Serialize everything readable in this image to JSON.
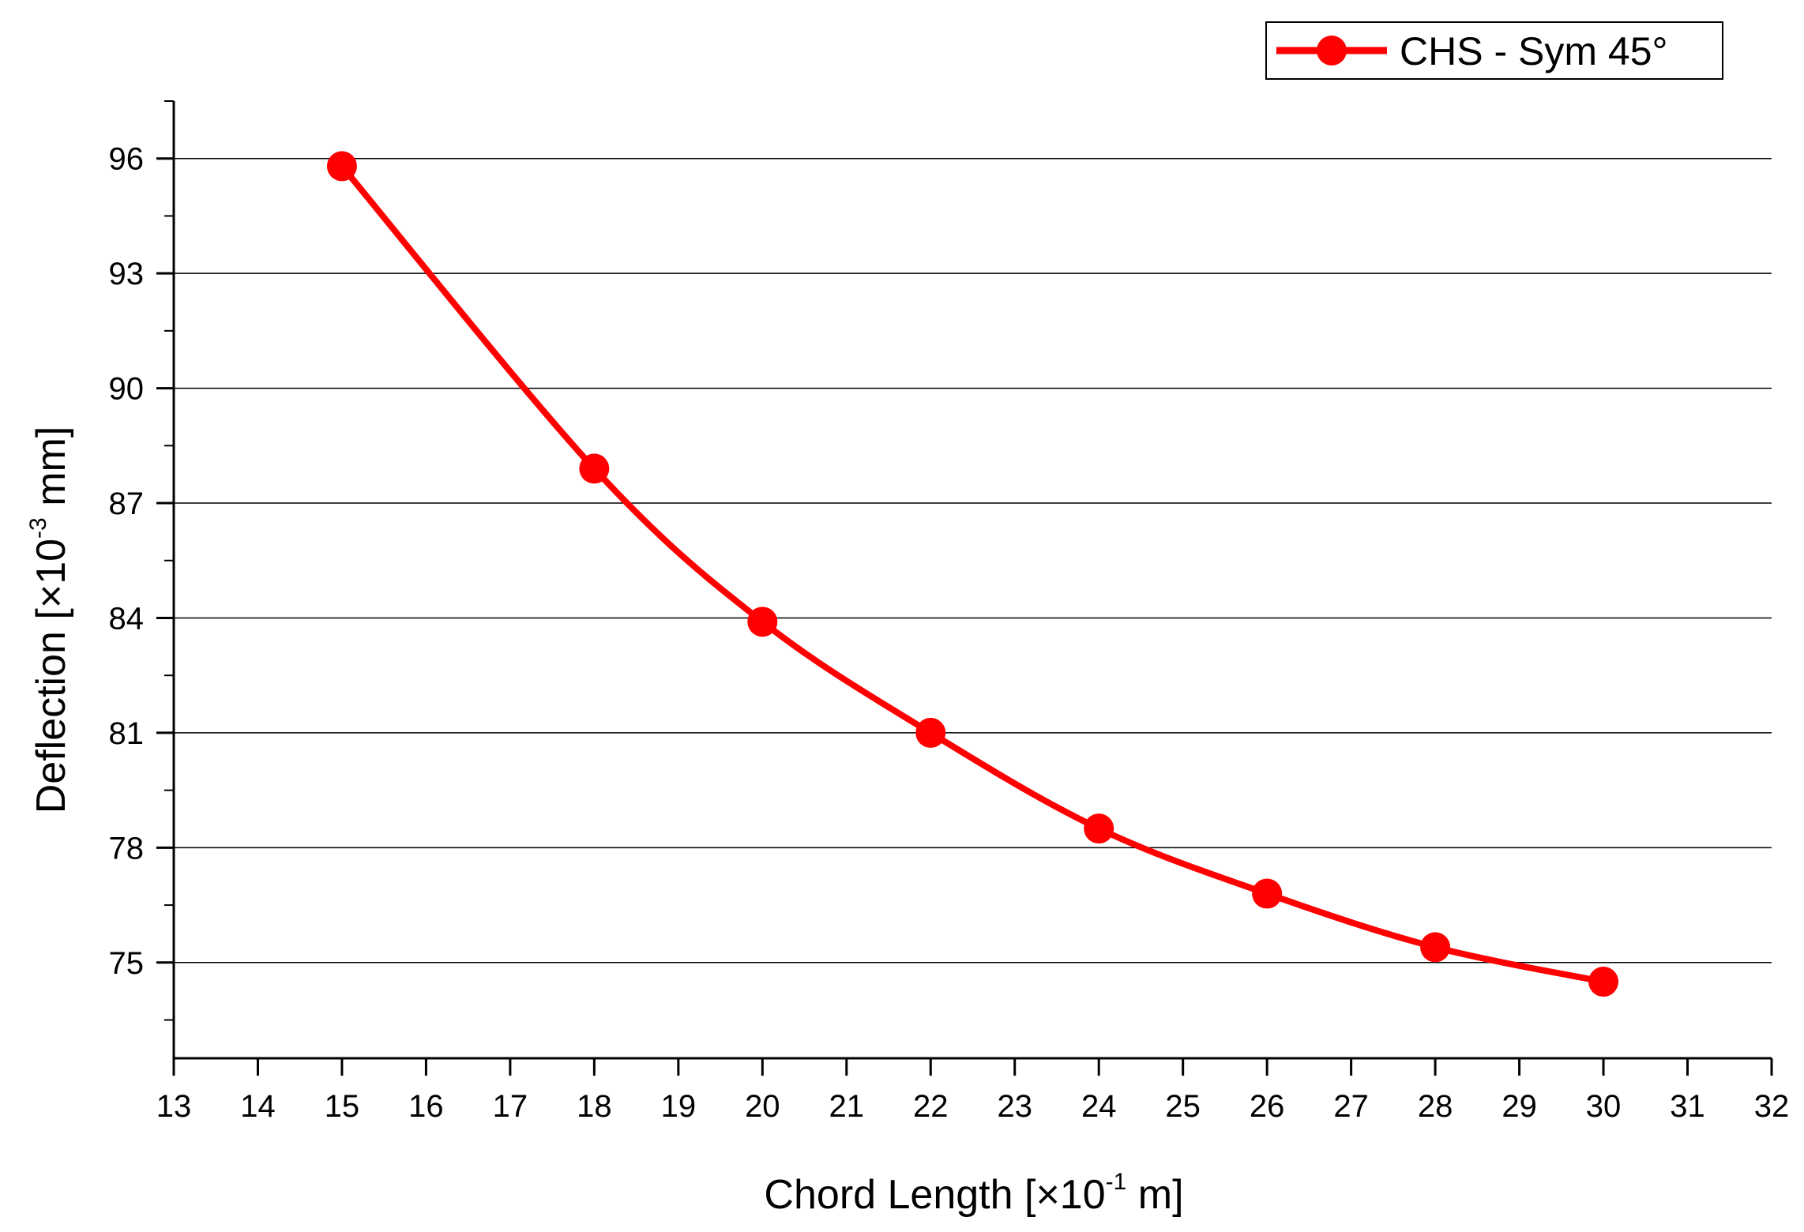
{
  "chart_data": {
    "type": "line",
    "title": "",
    "xlabel": {
      "main": "Chord Length [×10",
      "superscript": "-1",
      "unit": " m]"
    },
    "ylabel": {
      "main": "Deflection [×10",
      "superscript": "-3",
      "unit": " mm]"
    },
    "xlim": [
      13,
      32
    ],
    "ylim": [
      72.5,
      97.5
    ],
    "x_ticks": [
      13,
      14,
      15,
      16,
      17,
      18,
      19,
      20,
      21,
      22,
      23,
      24,
      25,
      26,
      27,
      28,
      29,
      30,
      31,
      32
    ],
    "y_ticks": [
      75,
      78,
      81,
      84,
      87,
      90,
      93,
      96
    ],
    "grid": "horizontal",
    "legend_position": "top-right",
    "series": [
      {
        "name": "CHS - Sym 45°",
        "color": "#ff0000",
        "marker": "circle",
        "x": [
          15,
          18,
          20,
          22,
          24,
          26,
          28,
          30
        ],
        "y": [
          95.8,
          87.9,
          83.9,
          81.0,
          78.5,
          76.8,
          75.4,
          74.5
        ]
      }
    ]
  }
}
